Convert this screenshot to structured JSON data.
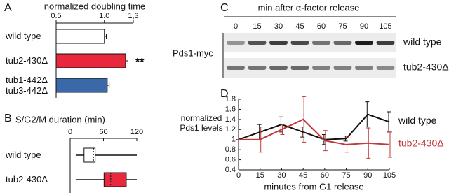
{
  "chart_data": [
    {
      "type": "bar",
      "panel": "A",
      "title": "normalized doubling time",
      "categories": [
        "wild type",
        "tub2-430Δ",
        "tub1-442Δ tub3-442Δ"
      ],
      "values": [
        1.0,
        1.22,
        1.03
      ],
      "errors": [
        0.02,
        0.025,
        0.02
      ],
      "colors": [
        "#ffffff",
        "#e8283c",
        "#3a68a8"
      ],
      "xlim": [
        0.5,
        1.3
      ],
      "xticks": [
        0.5,
        {
          "value": 1,
          "label": "1.0"
        },
        {
          "value": 1.3,
          "label": "1,3"
        }
      ],
      "annotation": "**"
    },
    {
      "type": "box",
      "panel": "B",
      "title": "S/G2/M duration (min)",
      "categories": [
        "wild type",
        "tub2-430Δ"
      ],
      "boxes": [
        {
          "min": 10,
          "q1": 25,
          "median": 42,
          "q3": 45,
          "max": 120
        },
        {
          "min": 10,
          "q1": 61,
          "median": 73,
          "q3": 101,
          "max": 120
        }
      ],
      "colors": [
        "#ffffff",
        "#e8283c"
      ],
      "xlim": [
        0,
        120
      ],
      "xticks": [
        0,
        60,
        120
      ]
    },
    {
      "type": "line",
      "panel": "D",
      "ylabel": "normalized Pds1 levels",
      "xlabel": "minutes from G1 release",
      "x": [
        0,
        15,
        30,
        45,
        60,
        75,
        90,
        105
      ],
      "series": [
        {
          "name": "wild type",
          "color": "#111111",
          "values": [
            1.0,
            1.15,
            1.3,
            1.15,
            1.0,
            1.02,
            1.5,
            1.35
          ],
          "errors": [
            0,
            0.15,
            0.15,
            0.1,
            0.1,
            0.05,
            0.25,
            0.2
          ]
        },
        {
          "name": "tub2-430Δ",
          "color": "#c0393b",
          "values": [
            1.0,
            1.0,
            1.2,
            1.4,
            0.98,
            0.9,
            0.93,
            0.9
          ],
          "errors": [
            0,
            0.25,
            0.1,
            0.45,
            0.2,
            0.15,
            0.3,
            0.25
          ]
        }
      ],
      "xlim": [
        0,
        105
      ],
      "xticks": [
        0,
        15,
        30,
        45,
        60,
        75,
        90,
        105
      ],
      "ylim": [
        0.4,
        1.8
      ],
      "yticks": [
        0.4,
        0.6,
        0.8,
        1,
        1.2,
        1.4,
        1.6,
        1.8
      ]
    }
  ],
  "blot": {
    "panel": "C",
    "title": "min after α-factor release",
    "times": [
      0,
      15,
      30,
      45,
      60,
      75,
      90,
      105
    ],
    "antibody": "Pds1-myc",
    "rows": [
      "wild type",
      "tub2-430Δ"
    ]
  }
}
